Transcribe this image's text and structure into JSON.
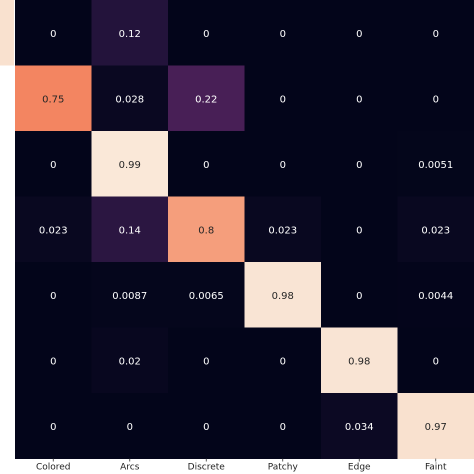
{
  "chart_data": {
    "type": "heatmap",
    "title": "",
    "xlabel": "",
    "ylabel": "",
    "x_categories": [
      "Colored",
      "Arcs",
      "Discrete",
      "Patchy",
      "Edge",
      "Faint"
    ],
    "value_range": [
      0,
      1
    ],
    "colormap": "rocket",
    "rows": [
      {
        "values": [
          0,
          0.12,
          0,
          0,
          0,
          0
        ],
        "labels": [
          "0",
          "0.12",
          "0",
          "0",
          "0",
          "0"
        ]
      },
      {
        "values": [
          0.75,
          0.028,
          0.22,
          0,
          0,
          0
        ],
        "labels": [
          "0.75",
          "0.028",
          "0.22",
          "0",
          "0",
          "0"
        ]
      },
      {
        "values": [
          0,
          0.99,
          0,
          0,
          0,
          0.0051
        ],
        "labels": [
          "0",
          "0.99",
          "0",
          "0",
          "0",
          "0.0051"
        ]
      },
      {
        "values": [
          0.023,
          0.14,
          0.8,
          0.023,
          0,
          0.023
        ],
        "labels": [
          "0.023",
          "0.14",
          "0.8",
          "0.023",
          "0",
          "0.023"
        ]
      },
      {
        "values": [
          0,
          0.0087,
          0.0065,
          0.98,
          0,
          0.0044
        ],
        "labels": [
          "0",
          "0.0087",
          "0.0065",
          "0.98",
          "0",
          "0.0044"
        ]
      },
      {
        "values": [
          0,
          0.02,
          0,
          0,
          0.98,
          0
        ],
        "labels": [
          "0",
          "0.02",
          "0",
          "0",
          "0.98",
          "0"
        ]
      },
      {
        "values": [
          0,
          0,
          0,
          0,
          0.034,
          0.97
        ],
        "labels": [
          "0",
          "0",
          "0",
          "0",
          "0.034",
          "0.97"
        ]
      }
    ],
    "partial_column_left": {
      "values": [
        0.97
      ]
    },
    "grid": false,
    "legend": "none"
  }
}
